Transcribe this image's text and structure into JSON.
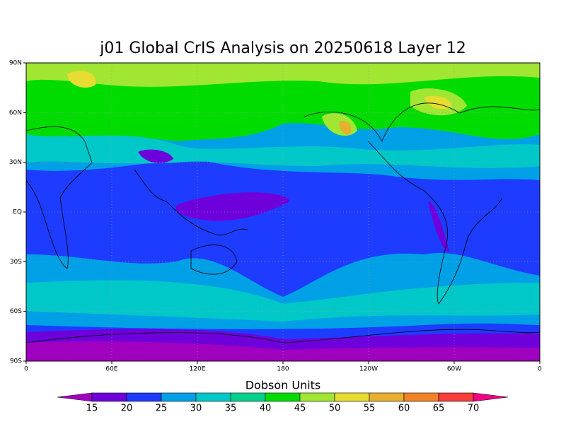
{
  "title": "j01 Global CrIS Analysis on 20250618 Layer 12",
  "x_labels": [
    "0",
    "60E",
    "120E",
    "180",
    "120W",
    "60W",
    "0"
  ],
  "y_labels": [
    "90N",
    "60N",
    "30N",
    "EQ",
    "30S",
    "60S",
    "90S"
  ],
  "colorbar": {
    "title": "Dobson Units",
    "levels": [
      15,
      20,
      25,
      30,
      35,
      40,
      45,
      50,
      55,
      60,
      65,
      70
    ],
    "colors": [
      "#a000c0",
      "#6e00dc",
      "#1e3cff",
      "#00a0e6",
      "#00c8c8",
      "#00d28c",
      "#00dc00",
      "#a0e632",
      "#e6dc32",
      "#e6af2d",
      "#f08228",
      "#fa3c3c",
      "#f00082"
    ]
  }
}
